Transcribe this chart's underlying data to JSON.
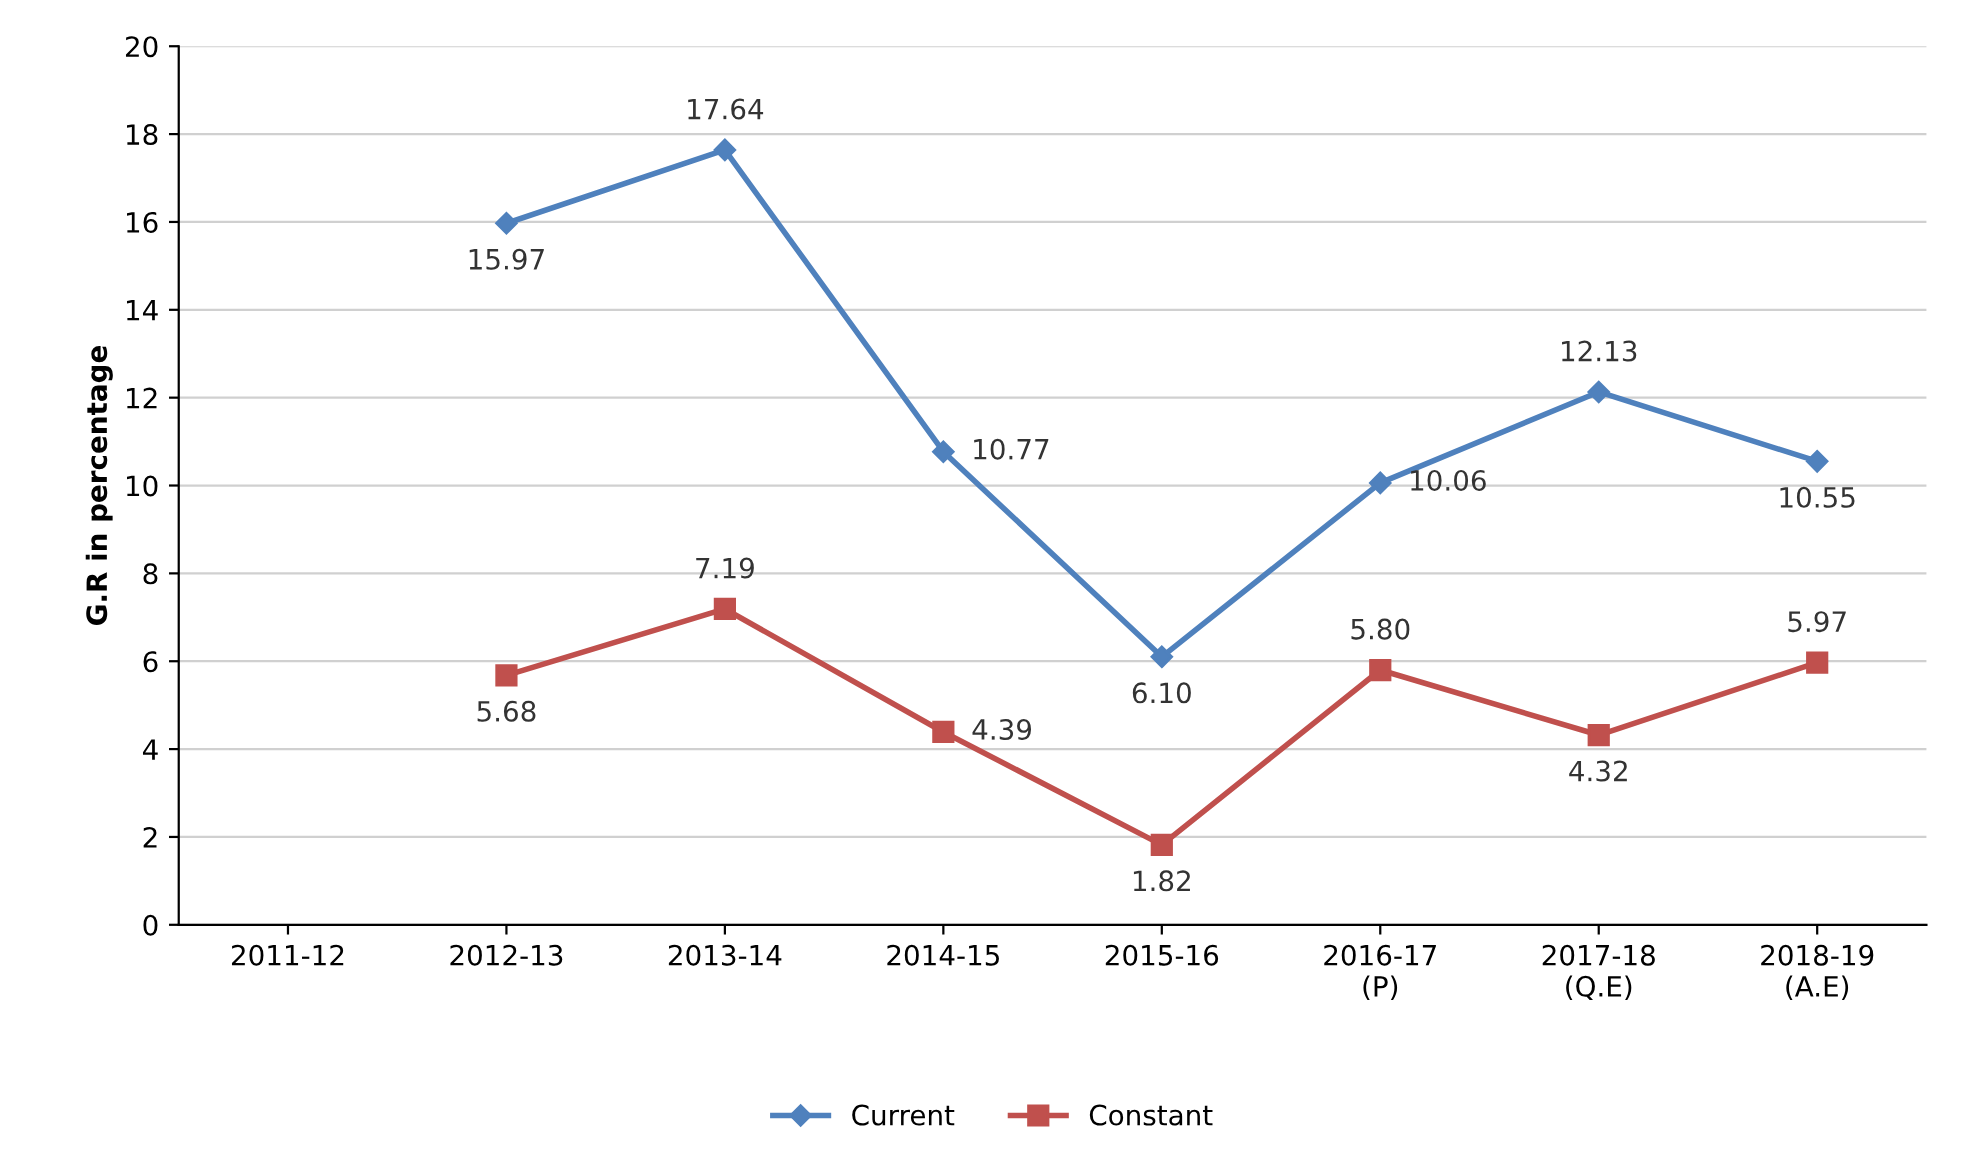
{
  "chart_data": {
    "type": "line",
    "ylabel": "G.R in percentage",
    "categories": [
      "2011-12",
      "2012-13",
      "2013-14",
      "2014-15",
      "2015-16",
      "2016-17\n(P)",
      "2017-18\n(Q.E)",
      "2018-19\n(A.E)"
    ],
    "series": [
      {
        "name": "Current",
        "color": "#4f81bd",
        "marker": "diamond",
        "values": [
          null,
          15.97,
          17.64,
          10.77,
          6.1,
          10.06,
          12.13,
          10.55
        ],
        "value_labels": [
          null,
          "15.97",
          "17.64",
          "10.77",
          "6.10",
          "10.06",
          "12.13",
          "10.55"
        ]
      },
      {
        "name": "Constant",
        "color": "#c0504d",
        "marker": "square",
        "values": [
          null,
          5.68,
          7.19,
          4.39,
          1.82,
          5.8,
          4.32,
          5.97
        ],
        "value_labels": [
          null,
          "5.68",
          "7.19",
          "4.39",
          "1.82",
          "5.80",
          "4.32",
          "5.97"
        ]
      }
    ],
    "ylim": [
      0,
      20
    ],
    "yticks": [
      0,
      2,
      4,
      6,
      8,
      10,
      12,
      14,
      16,
      18,
      20
    ],
    "grid": "y",
    "legend": "bottom"
  }
}
